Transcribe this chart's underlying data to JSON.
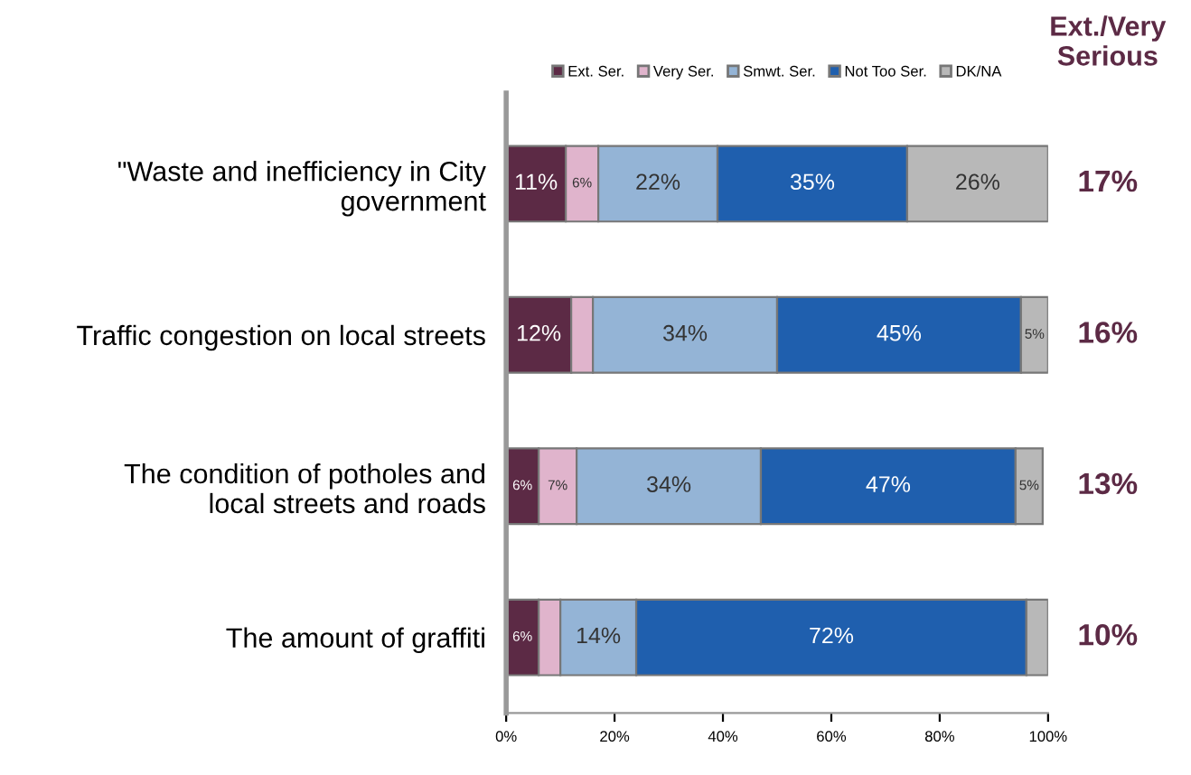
{
  "chart_data": {
    "type": "bar",
    "orientation": "horizontal",
    "stacked": true,
    "categories": [
      "\"Waste and inefficiency in City\ngovernment",
      "Traffic congestion on local streets",
      "The condition of potholes and\nlocal streets and roads",
      "The amount of graffiti"
    ],
    "series": [
      {
        "name": "Ext. Ser.",
        "color": "#5c2a45",
        "values": [
          11,
          12,
          6,
          6
        ],
        "value_labels": [
          "11%",
          "12%",
          "6%",
          "6%"
        ]
      },
      {
        "name": "Very Ser.",
        "color": "#e0b4cc",
        "values": [
          6,
          4,
          7,
          4
        ],
        "value_labels": [
          "6%",
          null,
          "7%",
          null
        ]
      },
      {
        "name": "Smwt. Ser.",
        "color": "#94b4d6",
        "values": [
          22,
          34,
          34,
          14
        ],
        "value_labels": [
          "22%",
          "34%",
          "34%",
          "14%"
        ]
      },
      {
        "name": "Not Too Ser.",
        "color": "#1f5fae",
        "values": [
          35,
          45,
          47,
          72
        ],
        "value_labels": [
          "35%",
          "45%",
          "47%",
          "72%"
        ]
      },
      {
        "name": "DK/NA",
        "color": "#b8b8b8",
        "values": [
          26,
          5,
          5,
          4
        ],
        "value_labels": [
          "26%",
          "5%",
          "5%",
          null
        ]
      }
    ],
    "xlim": [
      0,
      100
    ],
    "xticks": [
      {
        "value": 0,
        "label": "0%"
      },
      {
        "value": 20,
        "label": "20%"
      },
      {
        "value": 40,
        "label": "40%"
      },
      {
        "value": 60,
        "label": "60%"
      },
      {
        "value": 80,
        "label": "80%"
      },
      {
        "value": 100,
        "label": "100%"
      }
    ],
    "legend": "top",
    "annotations": [
      "Ext./Very\nSerious",
      "17%",
      "16%",
      "13%",
      "10%"
    ]
  }
}
